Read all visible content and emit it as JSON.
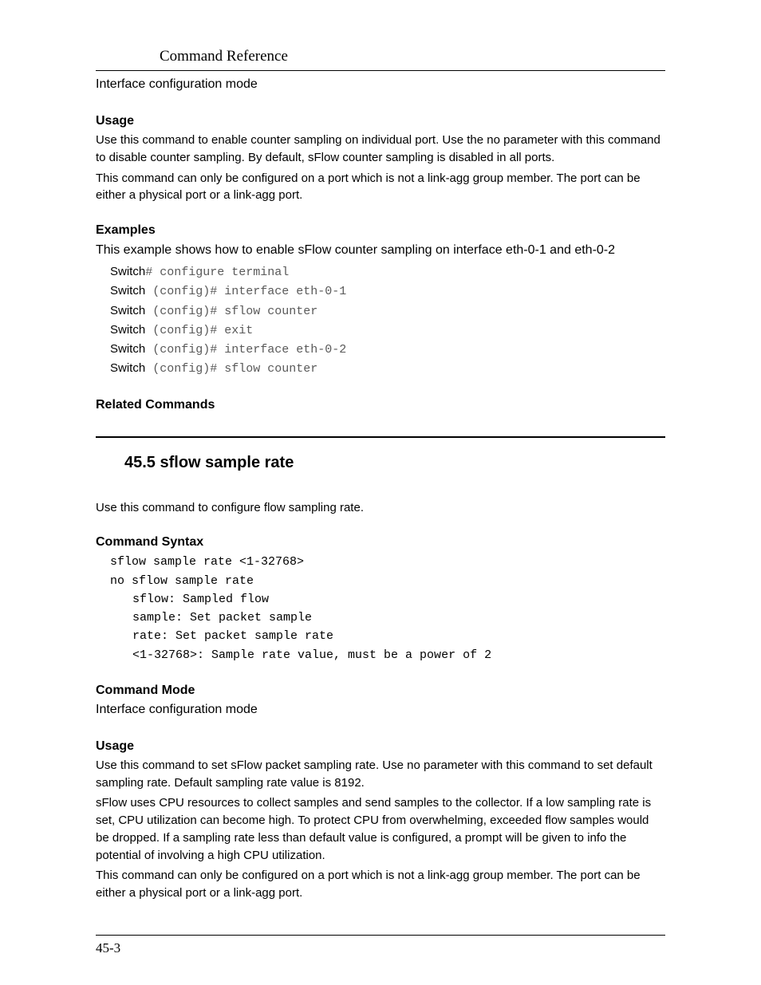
{
  "header": {
    "title": "Command Reference"
  },
  "sec_prev": {
    "mode": "Interface configuration mode",
    "usage_label": "Usage",
    "usage_p1": "Use this command to enable counter sampling on individual port. Use the no parameter with this command to disable counter sampling. By default, sFlow counter sampling is disabled in all ports.",
    "usage_p2": "This command can only be configured on a port which is not a link-agg group member. The port can be either a physical port or a link-agg port.",
    "examples_label": "Examples",
    "examples_intro": "This example shows how to enable sFlow counter sampling on interface eth-0-1 and eth-0-2",
    "cli": [
      {
        "prompt": "Switch",
        "cmd": "# configure terminal"
      },
      {
        "prompt": "Switch",
        "cmd": " (config)# interface eth-0-1"
      },
      {
        "prompt": "Switch",
        "cmd": " (config)# sflow counter"
      },
      {
        "prompt": "Switch",
        "cmd": " (config)# exit"
      },
      {
        "prompt": "Switch",
        "cmd": " (config)# interface eth-0-2"
      },
      {
        "prompt": "Switch",
        "cmd": " (config)# sflow counter"
      }
    ],
    "related_label": "Related Commands"
  },
  "sec_455": {
    "heading": "45.5 sflow sample rate",
    "intro": "Use this command to configure flow sampling rate.",
    "syntax_label": "Command Syntax",
    "syntax_lines": [
      "sflow sample rate <1-32768>",
      "no sflow sample rate"
    ],
    "syntax_sub": [
      "sflow: Sampled flow",
      "sample: Set packet sample",
      "rate: Set packet sample rate",
      "<1-32768>: Sample rate value, must be a power of 2"
    ],
    "mode_label": "Command Mode",
    "mode": "Interface configuration mode",
    "usage_label": "Usage",
    "usage_p1": "Use this command to set sFlow packet sampling rate. Use no parameter with this command to set default sampling rate. Default sampling rate value is 8192.",
    "usage_p2": "sFlow uses CPU resources to collect samples and send samples to the collector. If a low sampling rate is set, CPU utilization can become high. To protect CPU from overwhelming, exceeded flow samples would be dropped. If a sampling rate less than default value is configured, a prompt will be given to info the potential of involving a high CPU utilization.",
    "usage_p3": "This command can only be configured on a port which is not a link-agg group member. The port can be either a physical port or a link-agg port."
  },
  "footer": {
    "page": "45-3"
  }
}
